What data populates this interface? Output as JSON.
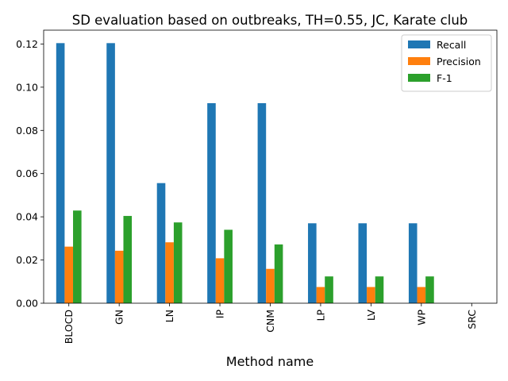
{
  "chart_data": {
    "type": "bar",
    "title": "SD evaluation based on outbreaks, TH=0.55, JC, Karate club",
    "xlabel": "Method name",
    "ylabel": "",
    "categories": [
      "BLOCD",
      "GN",
      "LN",
      "IP",
      "CNM",
      "LP",
      "LV",
      "WP",
      "SRC"
    ],
    "series": [
      {
        "name": "Recall",
        "color": "#1f77b4",
        "values": [
          0.1204,
          0.1204,
          0.0556,
          0.0926,
          0.0926,
          0.037,
          0.037,
          0.037,
          0.0
        ]
      },
      {
        "name": "Precision",
        "color": "#ff7f0e",
        "values": [
          0.0262,
          0.0243,
          0.0282,
          0.0208,
          0.0159,
          0.0075,
          0.0075,
          0.0075,
          0.0
        ]
      },
      {
        "name": "F-1",
        "color": "#2ca02c",
        "values": [
          0.0429,
          0.0404,
          0.0374,
          0.034,
          0.0272,
          0.0124,
          0.0124,
          0.0124,
          0.0
        ]
      }
    ],
    "ylim": [
      0,
      0.1264
    ],
    "yticks": [
      "0.00",
      "0.02",
      "0.04",
      "0.06",
      "0.08",
      "0.10",
      "0.12"
    ],
    "ytick_values": [
      0,
      0.02,
      0.04,
      0.06,
      0.08,
      0.1,
      0.12
    ],
    "grid": false,
    "legend": "top-right"
  }
}
